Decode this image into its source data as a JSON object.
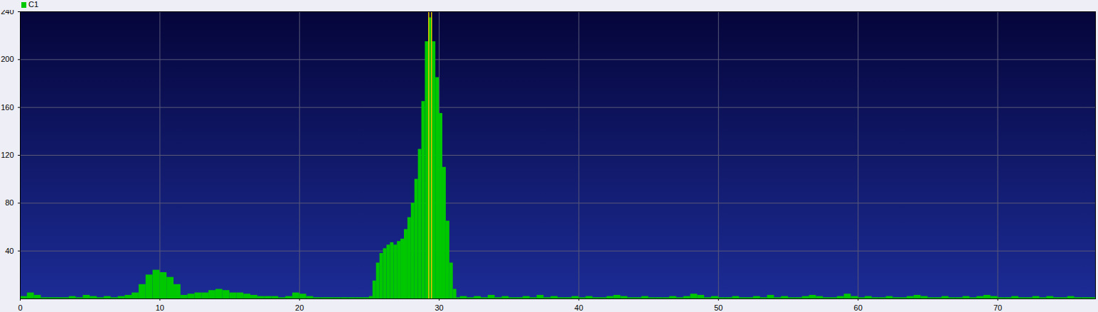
{
  "chart_data": {
    "type": "histogram",
    "legend": "top-left",
    "grid": true,
    "series": [
      {
        "name": "C1",
        "color": "#00c800"
      }
    ],
    "bins": [
      0,
      0.5,
      1,
      1.5,
      2,
      2.5,
      3,
      3.5,
      4,
      4.5,
      5,
      5.5,
      6,
      6.5,
      7,
      7.5,
      8,
      8.5,
      9,
      9.5,
      10,
      10.5,
      11,
      11.5,
      12,
      12.5,
      13,
      13.5,
      14,
      14.5,
      15,
      15.5,
      16,
      16.5,
      17,
      17.5,
      18,
      18.5,
      19,
      19.5,
      20,
      20.5,
      21,
      21.5,
      22,
      22.5,
      23,
      23.5,
      24,
      24.5,
      25,
      25.25,
      25.5,
      25.75,
      26,
      26.25,
      26.5,
      26.75,
      27,
      27.25,
      27.5,
      27.75,
      28,
      28.25,
      28.5,
      28.75,
      29,
      29.25,
      29.5,
      29.75,
      30,
      30.25,
      30.5,
      30.75,
      31,
      31.25,
      31.5,
      32,
      32.5,
      33,
      33.5,
      34,
      34.5,
      35,
      35.5,
      36,
      36.5,
      37,
      37.5,
      38,
      38.5,
      39,
      39.5,
      40,
      40.5,
      41,
      41.5,
      42,
      42.5,
      43,
      43.5,
      44,
      44.5,
      45,
      45.5,
      46,
      46.5,
      47,
      47.5,
      48,
      48.5,
      49,
      49.5,
      50,
      50.5,
      51,
      51.5,
      52,
      52.5,
      53,
      53.5,
      54,
      54.5,
      55,
      55.5,
      56,
      56.5,
      57,
      57.5,
      58,
      58.5,
      59,
      59.5,
      60,
      60.5,
      61,
      61.5,
      62,
      62.5,
      63,
      63.5,
      64,
      64.5,
      65,
      65.5,
      66,
      66.5,
      67,
      67.5,
      68,
      68.5,
      69,
      69.5,
      70,
      70.5,
      71,
      71.5,
      72,
      72.5,
      73,
      73.5,
      74,
      74.5,
      75,
      75.5,
      76,
      76.5,
      77
    ],
    "counts": [
      2,
      5,
      3,
      1,
      1,
      1,
      1,
      2,
      1,
      3,
      2,
      1,
      2,
      1,
      2,
      3,
      5,
      12,
      20,
      24,
      22,
      18,
      12,
      3,
      4,
      5,
      5,
      7,
      8,
      7,
      5,
      5,
      4,
      3,
      2,
      2,
      2,
      1,
      2,
      5,
      4,
      2,
      1,
      1,
      1,
      1,
      1,
      1,
      1,
      1,
      2,
      15,
      30,
      38,
      42,
      45,
      47,
      45,
      48,
      50,
      58,
      68,
      80,
      100,
      125,
      165,
      215,
      235,
      215,
      185,
      155,
      110,
      65,
      30,
      8,
      1,
      2,
      1,
      2,
      1,
      3,
      1,
      2,
      1,
      1,
      2,
      1,
      3,
      1,
      2,
      1,
      1,
      2,
      1,
      2,
      1,
      1,
      2,
      3,
      2,
      1,
      1,
      2,
      1,
      1,
      1,
      2,
      1,
      2,
      4,
      3,
      1,
      2,
      1,
      1,
      2,
      1,
      1,
      2,
      1,
      3,
      1,
      2,
      1,
      1,
      2,
      3,
      2,
      1,
      1,
      2,
      4,
      2,
      1,
      2,
      1,
      1,
      2,
      1,
      1,
      2,
      3,
      2,
      1,
      1,
      2,
      1,
      1,
      2,
      1,
      2,
      3,
      2,
      1,
      1,
      2,
      1,
      1,
      2,
      1,
      2,
      1,
      1,
      2,
      1,
      1,
      1
    ],
    "cursor_x": [
      29.25,
      29.45
    ],
    "xlim": [
      0,
      77
    ],
    "xticks": [
      0,
      10,
      20,
      30,
      40,
      50,
      60,
      70
    ],
    "ylim": [
      0,
      240
    ],
    "yticks": [
      40,
      80,
      120,
      160,
      200,
      240
    ]
  }
}
